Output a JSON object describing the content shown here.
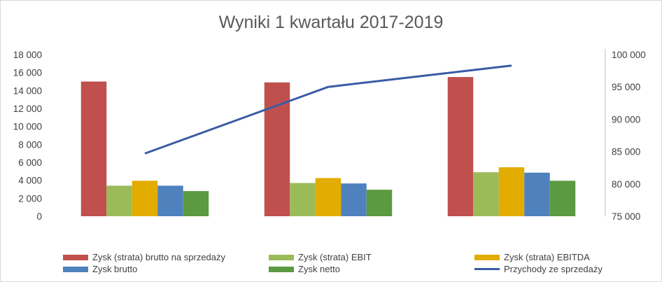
{
  "chart_data": {
    "type": "bar",
    "title": "Wyniki 1 kwartału 2017-2019",
    "categories": [
      "",
      "",
      ""
    ],
    "ylim": [
      0,
      18000
    ],
    "y2lim": [
      75000,
      100000
    ],
    "yticks": [
      "0",
      "2 000",
      "4 000",
      "6 000",
      "8 000",
      "10 000",
      "12 000",
      "14 000",
      "16 000",
      "18 000"
    ],
    "y2ticks": [
      "75 000",
      "80 000",
      "85 000",
      "90 000",
      "95 000",
      "100 000"
    ],
    "grid": false,
    "legend_position": "bottom",
    "series": [
      {
        "name": "Zysk (strata) brutto na sprzedaży",
        "type": "bar",
        "axis": "left",
        "color": "#c0504d",
        "values": [
          15000,
          14900,
          15500
        ]
      },
      {
        "name": "Zysk (strata) EBIT",
        "type": "bar",
        "axis": "left",
        "color": "#9bbb59",
        "values": [
          3400,
          3700,
          4900
        ]
      },
      {
        "name": "Zysk (strata) EBITDA",
        "type": "bar",
        "axis": "left",
        "color": "#e3ac00",
        "values": [
          3950,
          4250,
          5450
        ]
      },
      {
        "name": "Zysk brutto",
        "type": "bar",
        "axis": "left",
        "color": "#4f81bd",
        "values": [
          3400,
          3650,
          4850
        ]
      },
      {
        "name": "Zysk netto",
        "type": "bar",
        "axis": "left",
        "color": "#5b9a41",
        "values": [
          2800,
          2950,
          3950
        ]
      },
      {
        "name": "Przychody ze sprzedaży",
        "type": "line",
        "axis": "right",
        "color": "#3a5ba4",
        "values": [
          84700,
          95000,
          98300
        ]
      }
    ]
  }
}
